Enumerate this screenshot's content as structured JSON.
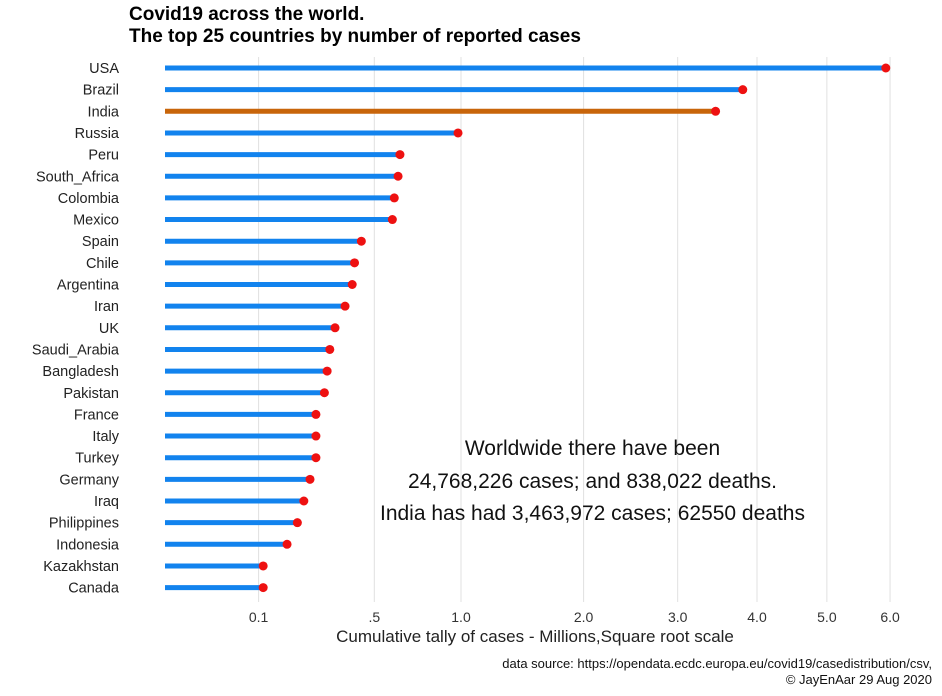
{
  "chart_data": {
    "type": "bar",
    "subtype": "lollipop",
    "title": "Covid19 across the world.",
    "subtitle": "The top 25 countries by number of reported cases",
    "xlabel": "Cumulative tally of cases - Millions,Square root scale",
    "ylabel": "",
    "x_scale": "sqrt",
    "xlim": [
      0,
      6.25
    ],
    "x_ticks": [
      {
        "value": 0.1,
        "label": "0.1"
      },
      {
        "value": 0.5,
        "label": ".5"
      },
      {
        "value": 1.0,
        "label": "1.0"
      },
      {
        "value": 2.0,
        "label": "2.0"
      },
      {
        "value": 3.0,
        "label": "3.0"
      },
      {
        "value": 4.0,
        "label": "4.0"
      },
      {
        "value": 5.0,
        "label": "5.0"
      },
      {
        "value": 6.0,
        "label": "6.0"
      }
    ],
    "grid": true,
    "highlight": "India",
    "colors": {
      "stem": "#1283ee",
      "highlight_stem": "#c8650a",
      "point": "#ee1111",
      "grid": "#e0e0e0"
    },
    "categories": [
      "USA",
      "Brazil",
      "India",
      "Russia",
      "Peru",
      "South_Africa",
      "Colombia",
      "Mexico",
      "Spain",
      "Chile",
      "Argentina",
      "Iran",
      "UK",
      "Saudi_Arabia",
      "Bangladesh",
      "Pakistan",
      "France",
      "Italy",
      "Turkey",
      "Germany",
      "Iraq",
      "Philippines",
      "Indonesia",
      "Kazakhstan",
      "Canada"
    ],
    "values": [
      5.93,
      3.81,
      3.46,
      0.98,
      0.63,
      0.62,
      0.6,
      0.59,
      0.44,
      0.41,
      0.4,
      0.37,
      0.33,
      0.31,
      0.3,
      0.29,
      0.26,
      0.26,
      0.26,
      0.24,
      0.22,
      0.2,
      0.17,
      0.11,
      0.11
    ]
  },
  "annotation": {
    "line1": "Worldwide there have been",
    "line2": "24,768,226 cases; and  838,022 deaths.",
    "line3": "India has had 3,463,972 cases;  62550 deaths"
  },
  "source": {
    "line1": "data source: https://opendata.ecdc.europa.eu/covid19/casedistribution/csv,",
    "line2": "© JayEnAar  29 Aug 2020"
  }
}
